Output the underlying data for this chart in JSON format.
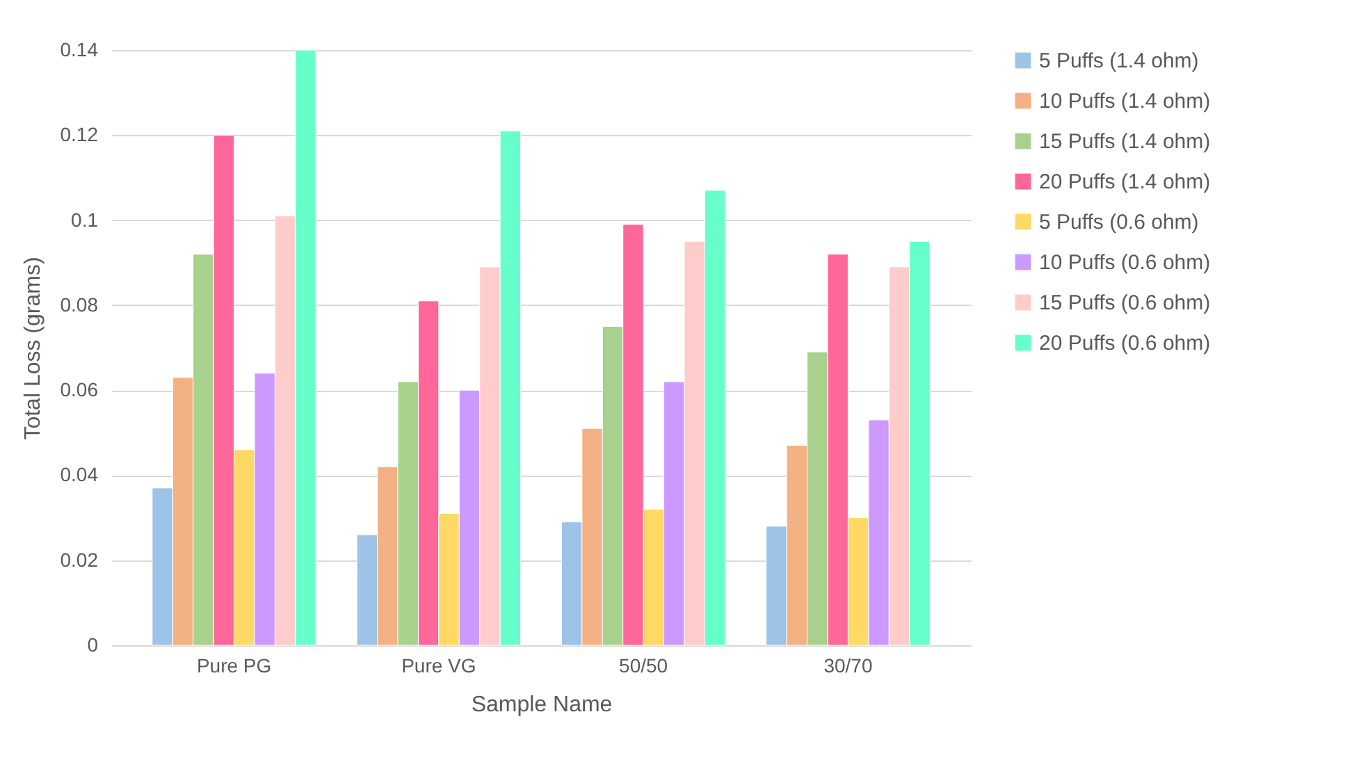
{
  "chart_data": {
    "type": "bar",
    "xlabel": "Sample Name",
    "ylabel": "Total Loss (grams)",
    "categories": [
      "Pure PG",
      "Pure VG",
      "50/50",
      "30/70"
    ],
    "series": [
      {
        "name": "5 Puffs (1.4 ohm)",
        "color": "#9dc3e6",
        "values": [
          0.037,
          0.026,
          0.029,
          0.028
        ]
      },
      {
        "name": "10 Puffs (1.4 ohm)",
        "color": "#f4b183",
        "values": [
          0.063,
          0.042,
          0.051,
          0.047
        ]
      },
      {
        "name": "15 Puffs (1.4 ohm)",
        "color": "#a9d18e",
        "values": [
          0.092,
          0.062,
          0.075,
          0.069
        ]
      },
      {
        "name": "20 Puffs (1.4 ohm)",
        "color": "#ff6699",
        "values": [
          0.12,
          0.081,
          0.099,
          0.092
        ]
      },
      {
        "name": "5 Puffs (0.6 ohm)",
        "color": "#ffd966",
        "values": [
          0.046,
          0.031,
          0.032,
          0.03
        ]
      },
      {
        "name": "10 Puffs (0.6 ohm)",
        "color": "#cc99ff",
        "values": [
          0.064,
          0.06,
          0.062,
          0.053
        ]
      },
      {
        "name": "15 Puffs (0.6 ohm)",
        "color": "#ffcccc",
        "values": [
          0.101,
          0.089,
          0.095,
          0.089
        ]
      },
      {
        "name": "20 Puffs (0.6 ohm)",
        "color": "#66ffcc",
        "values": [
          0.14,
          0.121,
          0.107,
          0.095
        ]
      }
    ],
    "ylim": [
      0,
      0.14
    ],
    "yticks": [
      0,
      0.02,
      0.04,
      0.06,
      0.08,
      0.1,
      0.12,
      0.14
    ],
    "grid": "y",
    "legend": "right"
  }
}
